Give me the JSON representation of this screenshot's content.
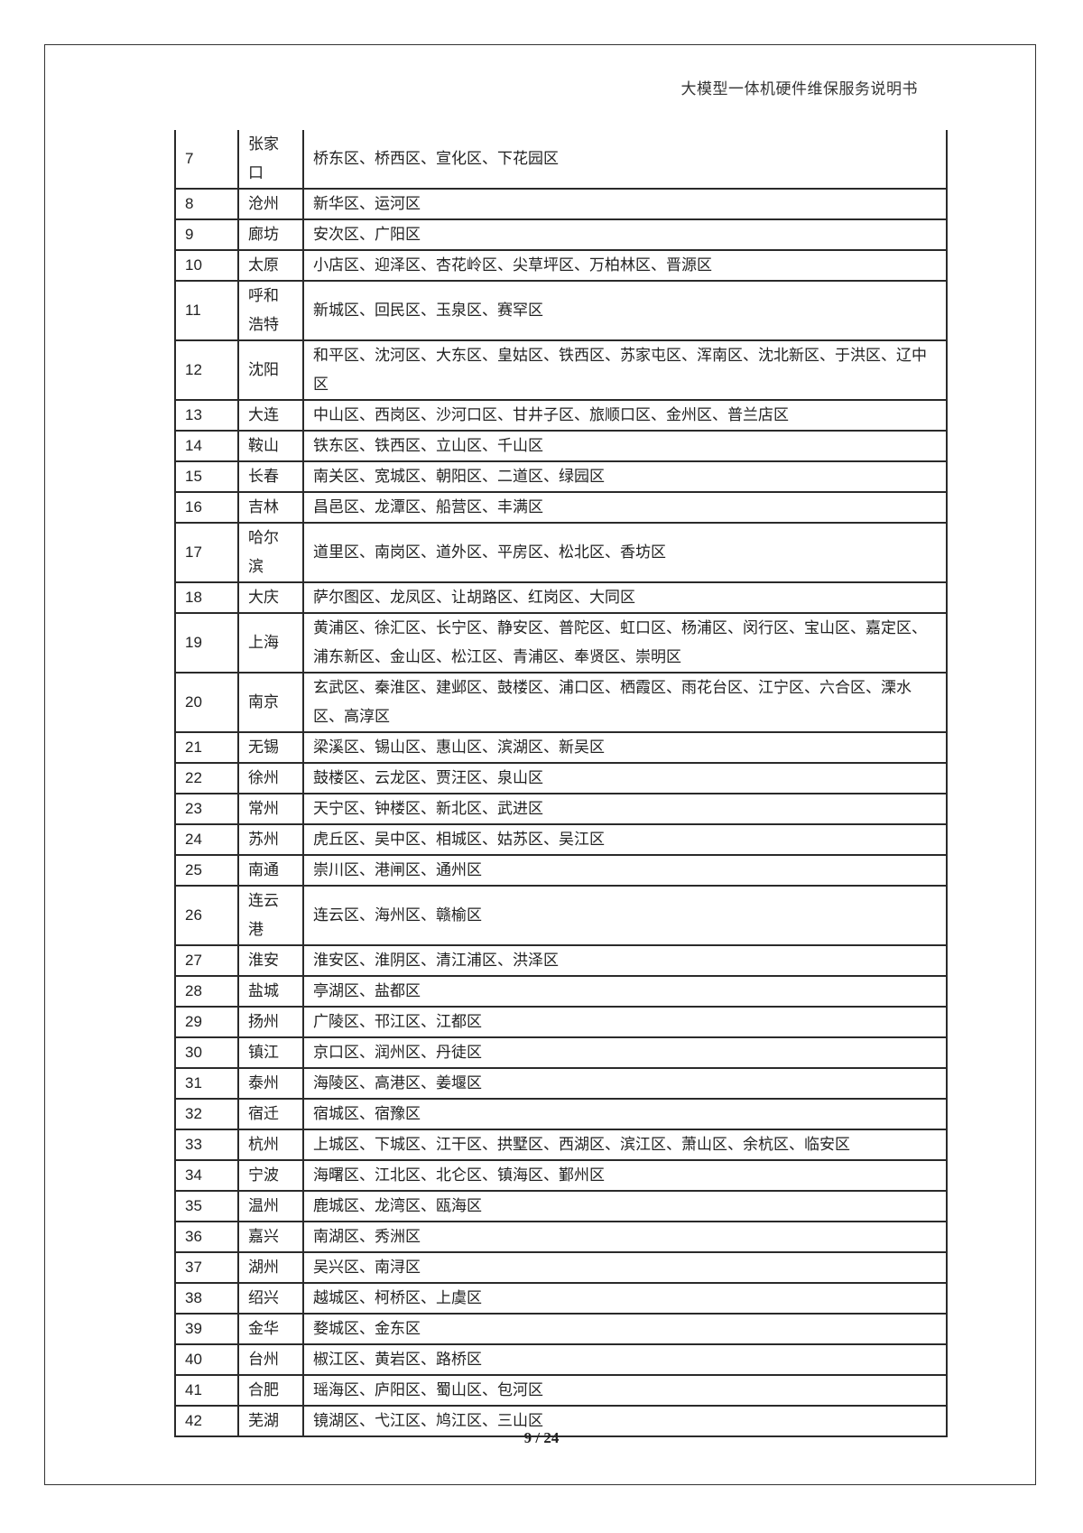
{
  "header": {
    "title": "大模型一体机硬件维保服务说明书"
  },
  "table": {
    "rows": [
      {
        "no": "7",
        "city": [
          "张家",
          "口"
        ],
        "districts": "桥东区、桥西区、宣化区、下花园区"
      },
      {
        "no": "8",
        "city": [
          "沧州"
        ],
        "districts": "新华区、运河区"
      },
      {
        "no": "9",
        "city": [
          "廊坊"
        ],
        "districts": "安次区、广阳区"
      },
      {
        "no": "10",
        "city": [
          "太原"
        ],
        "districts": "小店区、迎泽区、杏花岭区、尖草坪区、万柏林区、晋源区"
      },
      {
        "no": "11",
        "city": [
          "呼和",
          "浩特"
        ],
        "districts": "新城区、回民区、玉泉区、赛罕区"
      },
      {
        "no": "12",
        "city": [
          "沈阳"
        ],
        "districts": "和平区、沈河区、大东区、皇姑区、铁西区、苏家屯区、浑南区、沈北新区、于洪区、辽中区"
      },
      {
        "no": "13",
        "city": [
          "大连"
        ],
        "districts": "中山区、西岗区、沙河口区、甘井子区、旅顺口区、金州区、普兰店区"
      },
      {
        "no": "14",
        "city": [
          "鞍山"
        ],
        "districts": "铁东区、铁西区、立山区、千山区"
      },
      {
        "no": "15",
        "city": [
          "长春"
        ],
        "districts": "南关区、宽城区、朝阳区、二道区、绿园区"
      },
      {
        "no": "16",
        "city": [
          "吉林"
        ],
        "districts": "昌邑区、龙潭区、船营区、丰满区"
      },
      {
        "no": "17",
        "city": [
          "哈尔",
          "滨"
        ],
        "districts": "道里区、南岗区、道外区、平房区、松北区、香坊区"
      },
      {
        "no": "18",
        "city": [
          "大庆"
        ],
        "districts": "萨尔图区、龙凤区、让胡路区、红岗区、大同区"
      },
      {
        "no": "19",
        "city": [
          "上海"
        ],
        "districts": "黄浦区、徐汇区、长宁区、静安区、普陀区、虹口区、杨浦区、闵行区、宝山区、嘉定区、浦东新区、金山区、松江区、青浦区、奉贤区、崇明区"
      },
      {
        "no": "20",
        "city": [
          "南京"
        ],
        "districts": "玄武区、秦淮区、建邺区、鼓楼区、浦口区、栖霞区、雨花台区、江宁区、六合区、溧水区、高淳区"
      },
      {
        "no": "21",
        "city": [
          "无锡"
        ],
        "districts": "梁溪区、锡山区、惠山区、滨湖区、新吴区"
      },
      {
        "no": "22",
        "city": [
          "徐州"
        ],
        "districts": "鼓楼区、云龙区、贾汪区、泉山区"
      },
      {
        "no": "23",
        "city": [
          "常州"
        ],
        "districts": "天宁区、钟楼区、新北区、武进区"
      },
      {
        "no": "24",
        "city": [
          "苏州"
        ],
        "districts": "虎丘区、吴中区、相城区、姑苏区、吴江区"
      },
      {
        "no": "25",
        "city": [
          "南通"
        ],
        "districts": "崇川区、港闸区、通州区"
      },
      {
        "no": "26",
        "city": [
          "连云",
          "港"
        ],
        "districts": "连云区、海州区、赣榆区"
      },
      {
        "no": "27",
        "city": [
          "淮安"
        ],
        "districts": "淮安区、淮阴区、清江浦区、洪泽区"
      },
      {
        "no": "28",
        "city": [
          "盐城"
        ],
        "districts": "亭湖区、盐都区"
      },
      {
        "no": "29",
        "city": [
          "扬州"
        ],
        "districts": "广陵区、邗江区、江都区"
      },
      {
        "no": "30",
        "city": [
          "镇江"
        ],
        "districts": "京口区、润州区、丹徒区"
      },
      {
        "no": "31",
        "city": [
          "泰州"
        ],
        "districts": "海陵区、高港区、姜堰区"
      },
      {
        "no": "32",
        "city": [
          "宿迁"
        ],
        "districts": "宿城区、宿豫区"
      },
      {
        "no": "33",
        "city": [
          "杭州"
        ],
        "districts": "上城区、下城区、江干区、拱墅区、西湖区、滨江区、萧山区、余杭区、临安区"
      },
      {
        "no": "34",
        "city": [
          "宁波"
        ],
        "districts": "海曙区、江北区、北仑区、镇海区、鄞州区"
      },
      {
        "no": "35",
        "city": [
          "温州"
        ],
        "districts": "鹿城区、龙湾区、瓯海区"
      },
      {
        "no": "36",
        "city": [
          "嘉兴"
        ],
        "districts": "南湖区、秀洲区"
      },
      {
        "no": "37",
        "city": [
          "湖州"
        ],
        "districts": "吴兴区、南浔区"
      },
      {
        "no": "38",
        "city": [
          "绍兴"
        ],
        "districts": "越城区、柯桥区、上虞区"
      },
      {
        "no": "39",
        "city": [
          "金华"
        ],
        "districts": "婺城区、金东区"
      },
      {
        "no": "40",
        "city": [
          "台州"
        ],
        "districts": "椒江区、黄岩区、路桥区"
      },
      {
        "no": "41",
        "city": [
          "合肥"
        ],
        "districts": "瑶海区、庐阳区、蜀山区、包河区"
      },
      {
        "no": "42",
        "city": [
          "芜湖"
        ],
        "districts": "镜湖区、弋江区、鸠江区、三山区"
      }
    ]
  },
  "footer": {
    "page_number": "9 / 24"
  }
}
